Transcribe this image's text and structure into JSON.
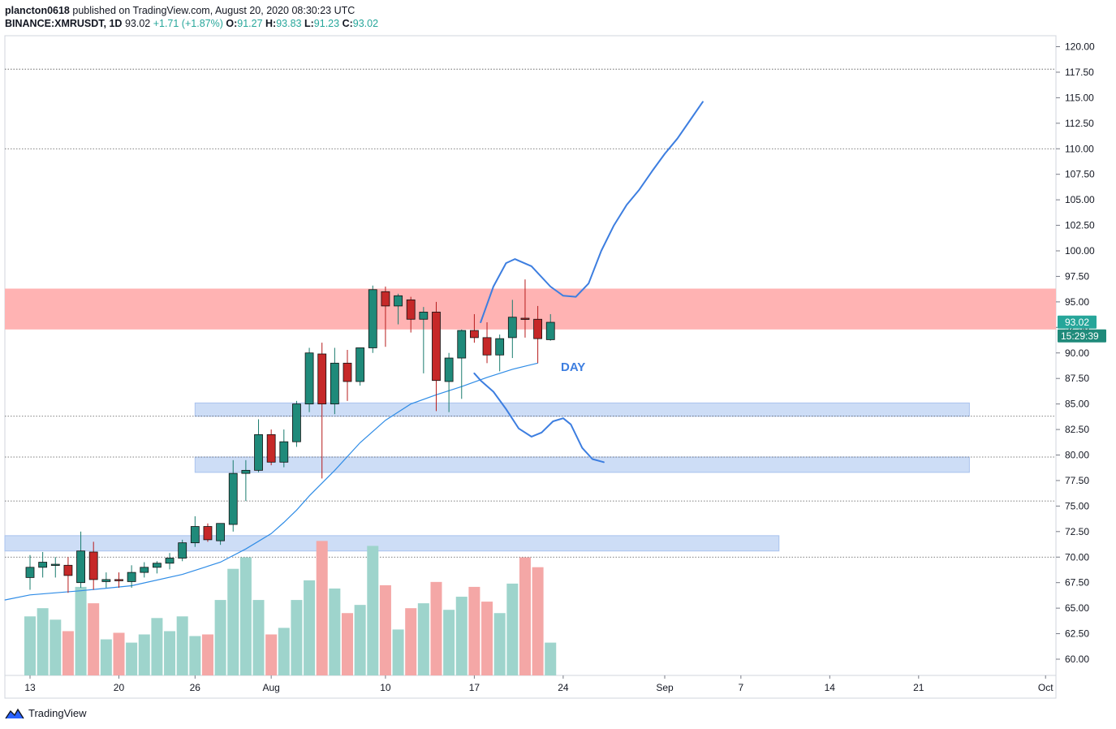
{
  "header": {
    "publisher": "plancton0618",
    "published_text": "published on TradingView.com, August 20, 2020 08:30:23 UTC",
    "symbol": "BINANCE:XMRUSDT, 1D",
    "last": "93.02",
    "change": "+1.71 (+1.87%)",
    "o_label": "O:",
    "o_value": "91.27",
    "h_label": "H:",
    "h_value": "93.83",
    "l_label": "L:",
    "l_value": "91.23",
    "c_label": "C:",
    "c_value": "93.02"
  },
  "footer": {
    "brand": "TradingView"
  },
  "colors": {
    "up": "#26a69a",
    "down": "#ef5350",
    "up_candle": "#1a7c6e",
    "down_candle": "#b71c1c",
    "up_volume": "#9ed4cc",
    "down_volume": "#f4a7a6",
    "resistance_zone": "#ffb3b3",
    "support_zone": "#c8d9f5",
    "drawing": "#3d7ee0",
    "ma": "#2f8ce6"
  },
  "chart_data": {
    "type": "candlestick",
    "symbol": "BINANCE:XMRUSDT",
    "timeframe": "1D",
    "ylim": [
      58.5,
      121.5
    ],
    "y_ticks": [
      60,
      62.5,
      65,
      67.5,
      70,
      72.5,
      75,
      77.5,
      80,
      82.5,
      85,
      87.5,
      90,
      92.5,
      95,
      97.5,
      100,
      102.5,
      105,
      107.5,
      110,
      112.5,
      115,
      117.5,
      120
    ],
    "y_tick_labels": [
      "60.00",
      "62.50",
      "65.00",
      "67.50",
      "70.00",
      "72.50",
      "75.00",
      "77.50",
      "80.00",
      "82.50",
      "85.00",
      "87.50",
      "90.00",
      "92.50",
      "95.00",
      "97.50",
      "100.00",
      "102.50",
      "105.00",
      "107.50",
      "110.00",
      "112.50",
      "115.00",
      "117.50",
      "120.00"
    ],
    "x_ticks": [
      {
        "label": "13",
        "day": 0
      },
      {
        "label": "20",
        "day": 7
      },
      {
        "label": "26",
        "day": 13
      },
      {
        "label": "Aug",
        "day": 19
      },
      {
        "label": "10",
        "day": 28
      },
      {
        "label": "17",
        "day": 35
      },
      {
        "label": "24",
        "day": 42
      },
      {
        "label": "Sep",
        "day": 50
      },
      {
        "label": "7",
        "day": 56
      },
      {
        "label": "14",
        "day": 63
      },
      {
        "label": "21",
        "day": 70
      },
      {
        "label": "Oct",
        "day": 80
      }
    ],
    "current_price": "93.02",
    "countdown": "15:29:39",
    "annotation": "DAY",
    "candles": [
      [
        68.0,
        70.2,
        66.8,
        69.0,
        0.36
      ],
      [
        69.0,
        70.5,
        68.0,
        69.5,
        0.41
      ],
      [
        69.3,
        70.0,
        68.0,
        69.3,
        0.34
      ],
      [
        69.2,
        70.0,
        66.5,
        68.2,
        0.27
      ],
      [
        67.5,
        72.5,
        67.0,
        70.6,
        0.54
      ],
      [
        70.5,
        71.5,
        66.8,
        67.8,
        0.44
      ],
      [
        67.6,
        68.5,
        67.0,
        67.8,
        0.22
      ],
      [
        67.8,
        68.5,
        67.0,
        67.7,
        0.26
      ],
      [
        67.6,
        69.2,
        67.0,
        68.5,
        0.2
      ],
      [
        68.5,
        69.5,
        68.0,
        69.0,
        0.25
      ],
      [
        69.0,
        69.6,
        68.4,
        69.4,
        0.35
      ],
      [
        69.4,
        70.4,
        68.8,
        69.9,
        0.27
      ],
      [
        69.9,
        71.7,
        69.6,
        71.4,
        0.36
      ],
      [
        71.4,
        74.0,
        71.0,
        73.0,
        0.24
      ],
      [
        73.0,
        73.3,
        71.5,
        71.7,
        0.25
      ],
      [
        71.6,
        73.3,
        71.2,
        73.3,
        0.46
      ],
      [
        73.2,
        79.5,
        72.5,
        78.2,
        0.65
      ],
      [
        78.2,
        79.5,
        75.5,
        78.5,
        0.72
      ],
      [
        78.5,
        83.5,
        78.3,
        82.0,
        0.46
      ],
      [
        82.0,
        82.5,
        79.0,
        79.3,
        0.25
      ],
      [
        79.3,
        82.5,
        78.8,
        81.3,
        0.29
      ],
      [
        81.3,
        85.3,
        80.8,
        85.0,
        0.46
      ],
      [
        85.0,
        90.5,
        84.2,
        90.0,
        0.58
      ],
      [
        89.9,
        91.0,
        77.7,
        85.0,
        0.82
      ],
      [
        85.0,
        90.5,
        84.0,
        89.0,
        0.53
      ],
      [
        89.0,
        90.3,
        85.3,
        87.2,
        0.38
      ],
      [
        87.2,
        90.5,
        86.8,
        90.5,
        0.43
      ],
      [
        90.5,
        96.6,
        90.0,
        96.2,
        0.79
      ],
      [
        96.0,
        96.5,
        90.6,
        94.6,
        0.55
      ],
      [
        94.6,
        95.8,
        92.8,
        95.6,
        0.28
      ],
      [
        95.2,
        95.5,
        92.0,
        93.3,
        0.41
      ],
      [
        93.3,
        94.5,
        88.0,
        94.0,
        0.44
      ],
      [
        94.0,
        95.0,
        84.3,
        87.3,
        0.57
      ],
      [
        87.2,
        90.0,
        84.2,
        89.5,
        0.4
      ],
      [
        89.5,
        92.3,
        85.5,
        92.2,
        0.48
      ],
      [
        92.2,
        93.8,
        91.0,
        91.5,
        0.54
      ],
      [
        91.5,
        93.0,
        89.0,
        89.8,
        0.45
      ],
      [
        89.8,
        91.8,
        88.2,
        91.4,
        0.38
      ],
      [
        91.5,
        95.2,
        89.5,
        93.5,
        0.56
      ],
      [
        93.4,
        97.2,
        91.5,
        93.3,
        0.72
      ],
      [
        93.3,
        94.6,
        89.0,
        91.4,
        0.66
      ],
      [
        91.3,
        93.8,
        91.2,
        93.0,
        0.2
      ]
    ],
    "ma": [
      [
        -2,
        65.8
      ],
      [
        0,
        66.3
      ],
      [
        4,
        66.7
      ],
      [
        8,
        67.2
      ],
      [
        12,
        68.3
      ],
      [
        15,
        69.5
      ],
      [
        17,
        70.8
      ],
      [
        19,
        72.3
      ],
      [
        20,
        73.4
      ],
      [
        21,
        74.6
      ],
      [
        22,
        76.0
      ],
      [
        24,
        78.5
      ],
      [
        26,
        81.2
      ],
      [
        28,
        83.4
      ],
      [
        30,
        85.0
      ],
      [
        32,
        85.9
      ],
      [
        34,
        86.7
      ],
      [
        36,
        87.6
      ],
      [
        38,
        88.4
      ],
      [
        39,
        88.7
      ],
      [
        40,
        89.0
      ]
    ],
    "resistance_zone": {
      "y1": 92.3,
      "y2": 96.3,
      "x_from": -4,
      "x_to": 87
    },
    "support_zones": [
      {
        "y1": 83.8,
        "y2": 85.1,
        "x_from": 13,
        "x_to": 74
      },
      {
        "y1": 78.3,
        "y2": 79.8,
        "x_from": 13,
        "x_to": 74
      },
      {
        "y1": 70.6,
        "y2": 72.1,
        "x_from": -4,
        "x_to": 59
      }
    ],
    "dotted_levels": [
      117.8,
      110.0,
      83.8,
      79.8,
      75.5,
      70.0
    ],
    "bull_path": [
      [
        35.5,
        93.0
      ],
      [
        36.5,
        96.5
      ],
      [
        37.5,
        98.8
      ],
      [
        38.2,
        99.2
      ],
      [
        39.5,
        98.5
      ],
      [
        41,
        96.5
      ],
      [
        42,
        95.6
      ],
      [
        43,
        95.5
      ],
      [
        44,
        96.8
      ],
      [
        45,
        100.0
      ],
      [
        46,
        102.5
      ],
      [
        47,
        104.5
      ],
      [
        48,
        106.0
      ],
      [
        49,
        107.8
      ],
      [
        50,
        109.5
      ],
      [
        51,
        111.0
      ],
      [
        52,
        112.8
      ],
      [
        53,
        114.6
      ]
    ],
    "bear_path": [
      [
        35.0,
        88.0
      ],
      [
        35.5,
        87.3
      ],
      [
        36.5,
        86.2
      ],
      [
        37.5,
        84.5
      ],
      [
        38.5,
        82.6
      ],
      [
        39.5,
        81.8
      ],
      [
        40.3,
        82.2
      ],
      [
        41.2,
        83.3
      ],
      [
        42,
        83.6
      ],
      [
        42.6,
        83.0
      ],
      [
        43.5,
        80.7
      ],
      [
        44.3,
        79.6
      ],
      [
        45.2,
        79.3
      ]
    ]
  }
}
